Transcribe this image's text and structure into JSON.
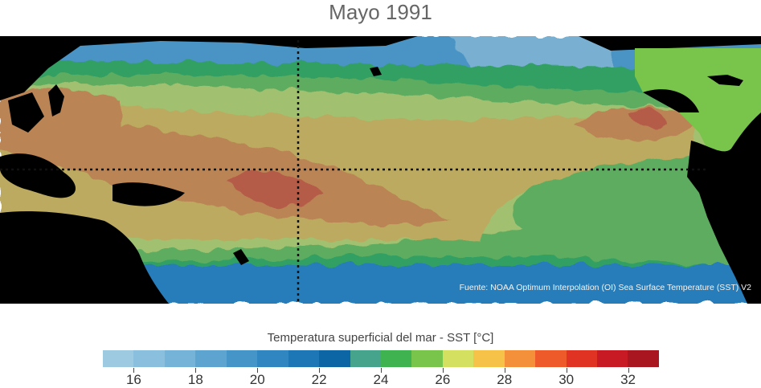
{
  "title": "Mayo 1991",
  "map": {
    "source_text": "Fuente: NOAA Optimum Interpolation (OI) Sea Surface Temperature (SST) V2",
    "land_color": "#000000",
    "reference_lines": [
      "equator",
      "dateline"
    ]
  },
  "colorbar": {
    "title": "Temperatura superficial del mar - SST  [°C]",
    "min": 15,
    "max": 33,
    "colors": [
      "#9ecae1",
      "#8abfdd",
      "#76b3d8",
      "#5ea4d0",
      "#4595c8",
      "#2f86c0",
      "#1d77b6",
      "#0c65a4",
      "#45a48b",
      "#3fb34f",
      "#79c44b",
      "#d3e060",
      "#f6c248",
      "#f48f3a",
      "#ee5a2a",
      "#e03324",
      "#c81a24",
      "#a9161f"
    ],
    "tick_values": [
      16,
      18,
      20,
      22,
      24,
      26,
      28,
      30,
      32
    ],
    "tick_labels": [
      "16",
      "18",
      "20",
      "22",
      "24",
      "26",
      "28",
      "30",
      "32"
    ]
  }
}
